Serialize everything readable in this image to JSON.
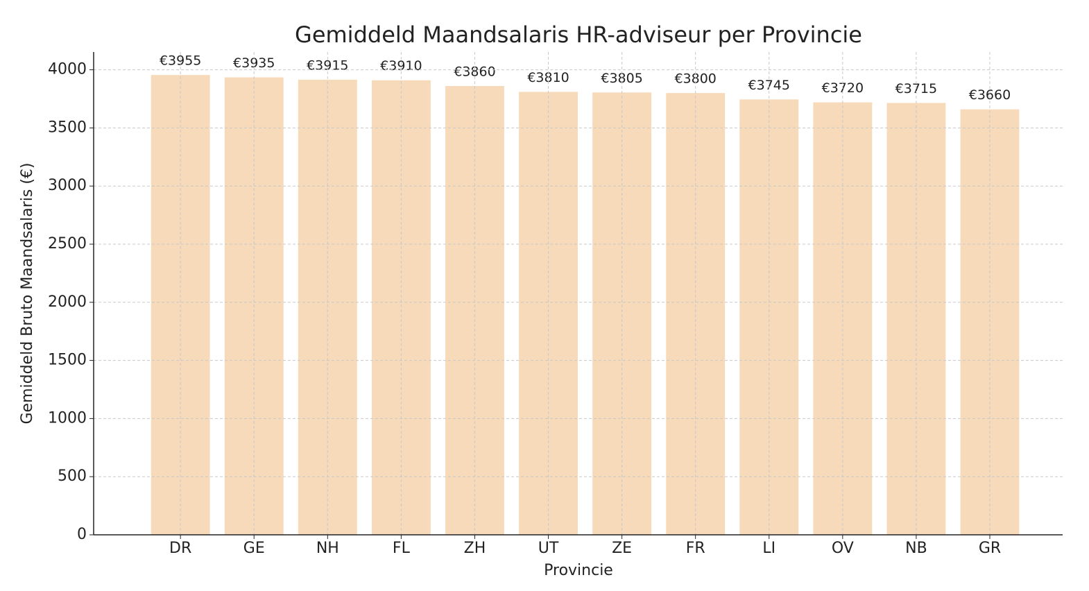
{
  "chart_data": {
    "type": "bar",
    "title": "Gemiddeld Maandsalaris HR-adviseur per Provincie",
    "x_label": "Provincie",
    "y_label": "Gemiddeld Bruto Maandsalaris (€)",
    "categories": [
      "DR",
      "GE",
      "NH",
      "FL",
      "ZH",
      "UT",
      "ZE",
      "FR",
      "LI",
      "OV",
      "NB",
      "GR"
    ],
    "values": [
      3955,
      3935,
      3915,
      3910,
      3860,
      3810,
      3805,
      3800,
      3745,
      3720,
      3715,
      3660
    ],
    "value_labels": [
      "€3955",
      "€3935",
      "€3915",
      "€3910",
      "€3860",
      "€3810",
      "€3805",
      "€3800",
      "€3745",
      "€3720",
      "€3715",
      "€3660"
    ],
    "color": "#f7dab9",
    "ylim": [
      0,
      4152.75
    ],
    "yticks": [
      0,
      500,
      1000,
      1500,
      2000,
      2500,
      3000,
      3500,
      4000
    ],
    "grid": true
  }
}
